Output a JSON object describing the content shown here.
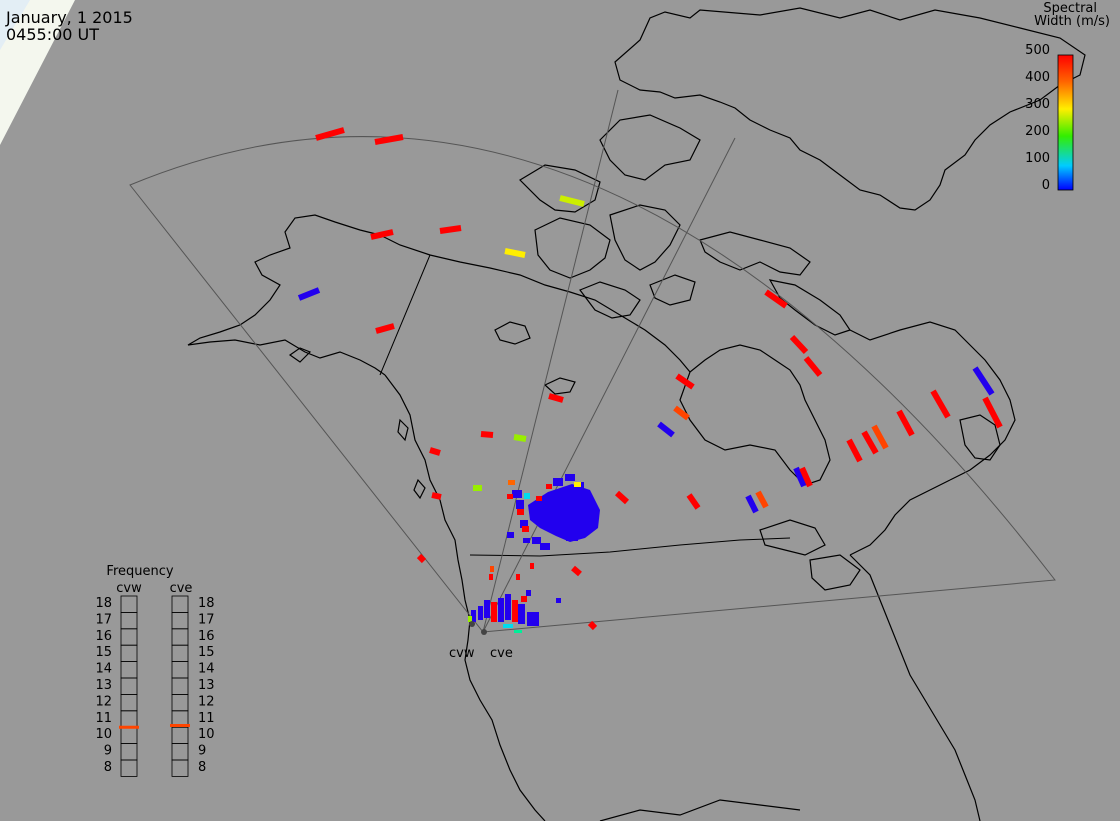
{
  "header": {
    "date": "January, 1 2015",
    "time": "0455:00 UT"
  },
  "colorbar": {
    "title_line1": "Spectral",
    "title_line2": "Width (m/s)",
    "ticks": [
      "500",
      "400",
      "300",
      "200",
      "100",
      "0"
    ]
  },
  "frequency_panel": {
    "title": "Frequency",
    "left_label": "cvw",
    "right_label": "cve",
    "scale": [
      "18",
      "17",
      "16",
      "15",
      "14",
      "13",
      "12",
      "11",
      "10",
      "9",
      "8"
    ],
    "cvw_value_mhz": 10.5,
    "cve_value_mhz": 10.6
  },
  "radar_labels": {
    "west": "cvw",
    "east": "cve"
  },
  "colors": {
    "background": "#999999",
    "coastline": "#000000",
    "fov_outline": "#555555",
    "freq_marker": "#ff4500"
  }
}
